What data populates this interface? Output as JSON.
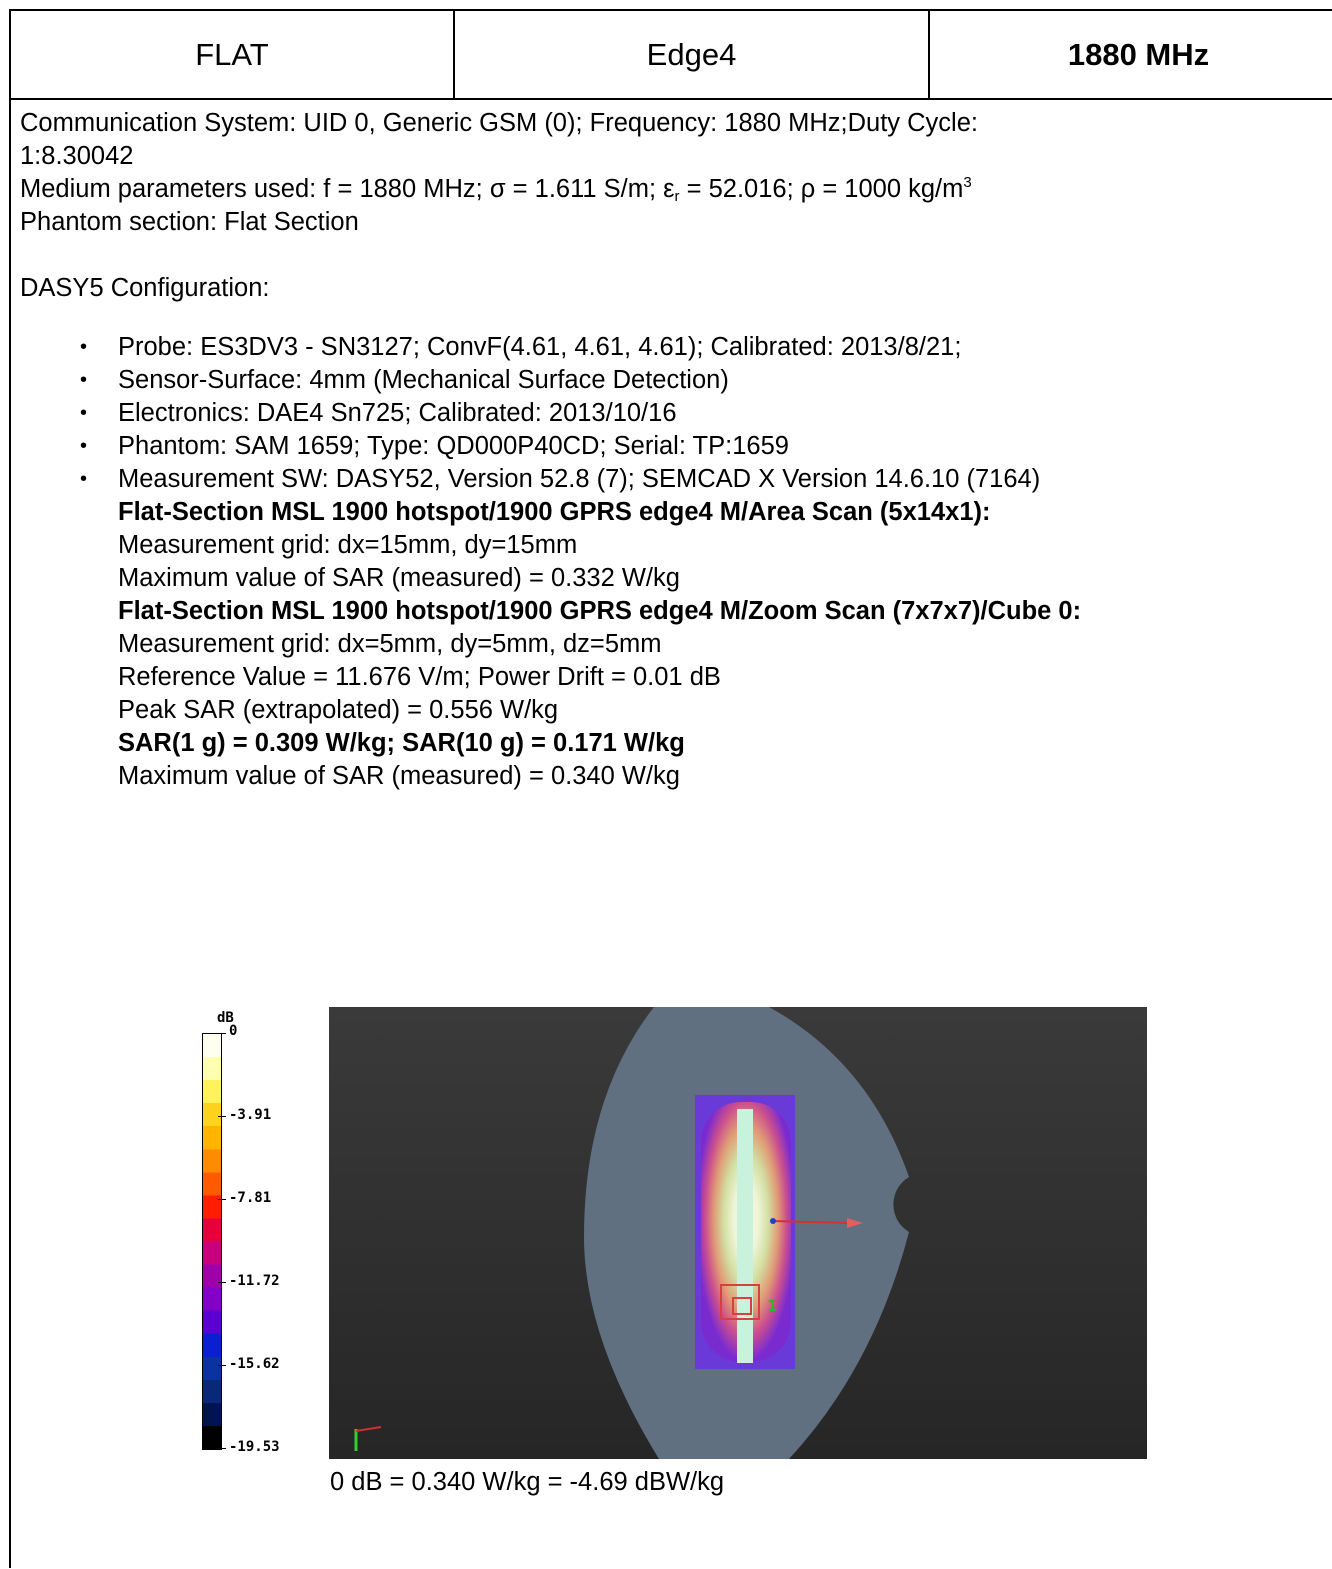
{
  "header": {
    "position": "FLAT",
    "edge": "Edge4",
    "frequency": "1880 MHz"
  },
  "comm": {
    "line1": "Communication System: UID 0, Generic GSM (0); Frequency: 1880 MHz;Duty Cycle:",
    "line2": "1:8.30042"
  },
  "medium": {
    "prefix": "Medium parameters used: f = 1880 MHz; σ = 1.611 S/m; ε",
    "eps_sub": "r",
    "mid": " = 52.016; ρ = 1000 kg/m",
    "cube_sup": "3"
  },
  "phantom_section": "Phantom section: Flat Section",
  "dasy_config": "DASY5 Configuration:",
  "config_items": [
    "Probe: ES3DV3 - SN3127; ConvF(4.61, 4.61, 4.61); Calibrated: 2013/8/21;",
    "Sensor-Surface: 4mm (Mechanical Surface Detection)",
    "Electronics: DAE4 Sn725; Calibrated: 2013/10/16",
    "Phantom: SAM 1659; Type: QD000P40CD; Serial: TP:1659",
    "Measurement SW: DASY52, Version 52.8 (7); SEMCAD X Version 14.6.10 (7164)"
  ],
  "area_scan": {
    "title": "Flat-Section MSL 1900 hotspot/1900 GPRS edge4 M/Area Scan (5x14x1):",
    "grid": "Measurement grid: dx=15mm, dy=15mm",
    "max": "Maximum value of SAR (measured) = 0.332 W/kg"
  },
  "zoom_scan": {
    "title": "Flat-Section MSL 1900 hotspot/1900 GPRS edge4 M/Zoom Scan (7x7x7)/Cube 0:",
    "grid": "Measurement grid: dx=5mm, dy=5mm, dz=5mm",
    "reference": "Reference Value = 11.676 V/m; Power Drift = 0.01 dB",
    "peak": "Peak SAR (extrapolated) = 0.556 W/kg",
    "sar": "SAR(1 g) = 0.309 W/kg; SAR(10 g) = 0.171 W/kg",
    "max": "Maximum value of SAR (measured) = 0.340 W/kg"
  },
  "legend": {
    "unit": "dB",
    "ticks": [
      "0",
      "-3.91",
      "-7.81",
      "-11.72",
      "-15.62",
      "-19.53"
    ],
    "colors": [
      "#fffff0",
      "#ffffb0",
      "#fff25a",
      "#ffd21e",
      "#ffb400",
      "#ff8c00",
      "#ff5a00",
      "#ff1e00",
      "#e6003c",
      "#c8007d",
      "#a000aa",
      "#8200c8",
      "#5a00d2",
      "#0a1ed2",
      "#0a32a0",
      "#0a2878",
      "#001450",
      "#000000"
    ],
    "marker": "1"
  },
  "caption": "0 dB = 0.340 W/kg = -4.69 dBW/kg"
}
